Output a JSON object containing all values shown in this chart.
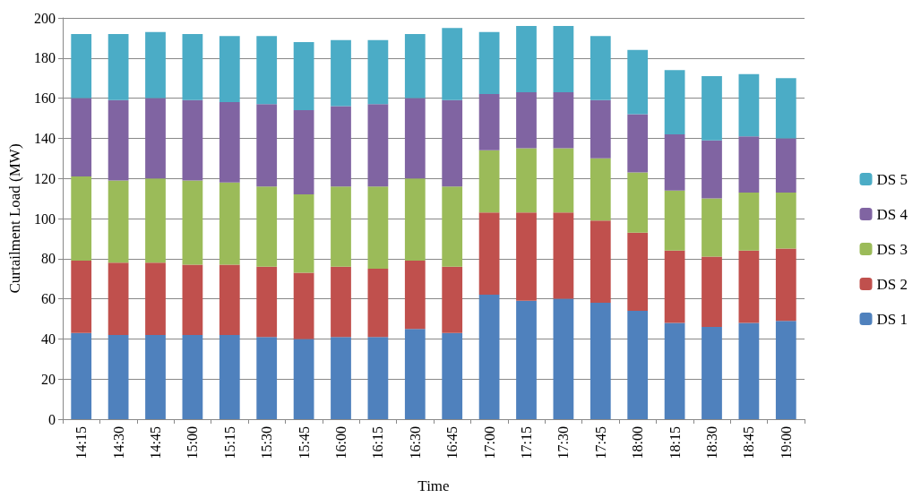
{
  "chart_data": {
    "type": "bar",
    "stacked": true,
    "xlabel": "Time",
    "ylabel": "Curtailment Load (MW)",
    "categories": [
      "14:15",
      "14:30",
      "14:45",
      "15:00",
      "15:15",
      "15:30",
      "15:45",
      "16:00",
      "16:15",
      "16:30",
      "16:45",
      "17:00",
      "17:15",
      "17:30",
      "17:45",
      "18:00",
      "18:15",
      "18:30",
      "18:45",
      "19:00"
    ],
    "series": [
      {
        "name": "DS 1",
        "color": "#4f81bd",
        "values": [
          43,
          42,
          42,
          42,
          42,
          41,
          40,
          41,
          41,
          45,
          43,
          62,
          59,
          60,
          58,
          54,
          48,
          46,
          48,
          49
        ]
      },
      {
        "name": "DS 2",
        "color": "#c0504d",
        "values": [
          36,
          36,
          36,
          35,
          35,
          35,
          33,
          35,
          34,
          34,
          33,
          41,
          44,
          43,
          41,
          39,
          36,
          35,
          36,
          36
        ]
      },
      {
        "name": "DS 3",
        "color": "#9bbb59",
        "values": [
          42,
          41,
          42,
          42,
          41,
          40,
          39,
          40,
          41,
          41,
          40,
          31,
          32,
          32,
          31,
          30,
          30,
          29,
          29,
          28
        ]
      },
      {
        "name": "DS 4",
        "color": "#8064a2",
        "values": [
          39,
          40,
          40,
          40,
          40,
          41,
          42,
          40,
          41,
          40,
          43,
          28,
          28,
          28,
          29,
          29,
          28,
          29,
          28,
          27
        ]
      },
      {
        "name": "DS 5",
        "color": "#4bacc6",
        "values": [
          32,
          33,
          33,
          33,
          33,
          34,
          34,
          33,
          32,
          32,
          36,
          31,
          33,
          33,
          32,
          32,
          32,
          32,
          31,
          30
        ]
      }
    ],
    "ylim": [
      0,
      200
    ],
    "yticks": [
      0,
      20,
      40,
      60,
      80,
      100,
      120,
      140,
      160,
      180,
      200
    ],
    "grid": "y",
    "legend": "right"
  }
}
